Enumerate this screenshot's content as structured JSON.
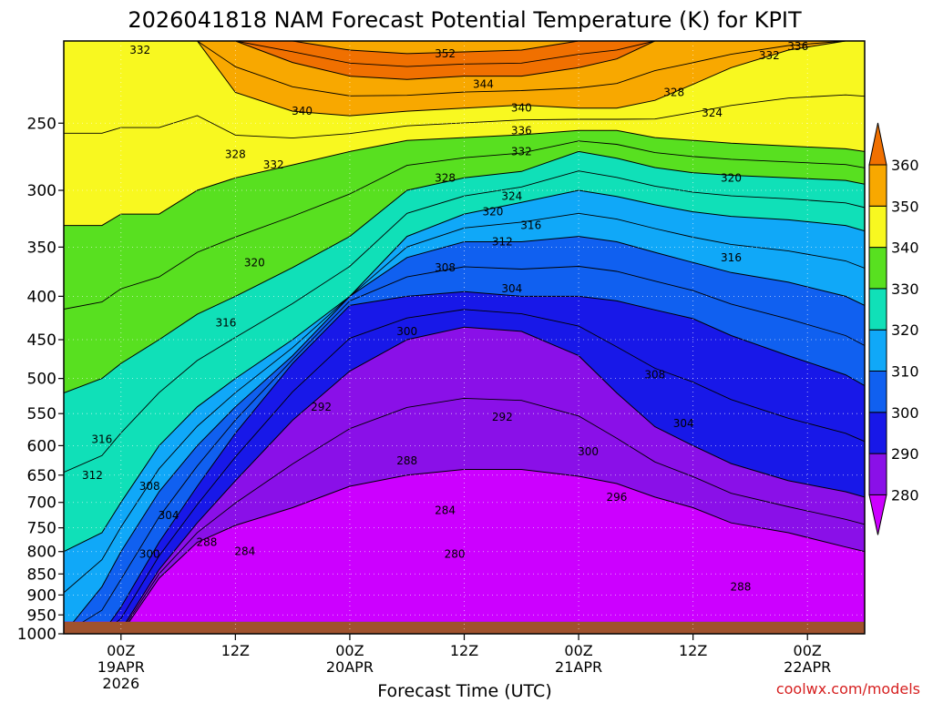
{
  "chart_data": {
    "type": "heatmap",
    "title": "2026041818 NAM Forecast Potential Temperature (K) for KPIT",
    "xlabel": "Forecast Time (UTC)",
    "ylabel": "",
    "watermark": "coolwx.com/models",
    "y_scale": "log",
    "y_inverted": true,
    "ylim": [
      1000,
      200
    ],
    "y_ticks": [
      1000,
      950,
      900,
      850,
      800,
      750,
      700,
      650,
      600,
      550,
      500,
      450,
      400,
      350,
      300,
      250
    ],
    "y_tick_labels": [
      "1000",
      "950",
      "900",
      "850",
      "800",
      "750",
      "700",
      "650",
      "600",
      "550",
      "500",
      "450",
      "400",
      "350",
      "300",
      "250"
    ],
    "xlim": [
      "2026-04-18T18Z",
      "2026-04-22T12Z"
    ],
    "x_ticks": [
      {
        "hour": 6,
        "label": "00Z",
        "sub1": "19APR",
        "sub2": "2026"
      },
      {
        "hour": 18,
        "label": "12Z",
        "sub1": "",
        "sub2": ""
      },
      {
        "hour": 30,
        "label": "00Z",
        "sub1": "20APR",
        "sub2": ""
      },
      {
        "hour": 42,
        "label": "12Z",
        "sub1": "",
        "sub2": ""
      },
      {
        "hour": 54,
        "label": "00Z",
        "sub1": "21APR",
        "sub2": ""
      },
      {
        "hour": 66,
        "label": "12Z",
        "sub1": "",
        "sub2": ""
      },
      {
        "hour": 78,
        "label": "00Z",
        "sub1": "22APR",
        "sub2": ""
      }
    ],
    "x_range_hours": [
      0,
      84
    ],
    "grid": true,
    "legend_position": "right",
    "colorbar": {
      "levels": [
        280,
        290,
        300,
        310,
        320,
        330,
        340,
        350,
        360
      ],
      "labels": [
        "280",
        "290",
        "300",
        "310",
        "320",
        "330",
        "340",
        "350",
        "360"
      ],
      "colors": [
        "#cc00ff",
        "#8a10e8",
        "#1818e8",
        "#1060f0",
        "#10a8f8",
        "#10e0b8",
        "#58e020",
        "#f8f820",
        "#f8a800",
        "#f07000"
      ]
    },
    "ground_color": "#a0522d",
    "contour_interval": 4,
    "series": [
      {
        "name": "",
        "x": [
          0,
          4,
          6,
          10,
          14,
          18,
          24,
          30,
          36,
          42,
          48,
          54,
          58,
          62,
          66,
          70,
          76,
          82,
          84
        ],
        "values": [
          1000,
          1000,
          1000,
          860,
          780,
          745,
          710,
          670,
          650,
          640,
          640,
          652,
          665,
          690,
          710,
          740,
          760,
          790,
          800
        ]
      },
      {
        "name": "",
        "x": [
          0,
          4,
          6,
          10,
          14,
          18,
          24,
          30,
          36,
          42,
          48,
          54,
          58,
          62,
          66,
          70,
          76,
          82,
          84
        ],
        "values": [
          1000,
          1000,
          990,
          840,
          740,
          660,
          560,
          490,
          450,
          435,
          440,
          470,
          520,
          570,
          600,
          630,
          660,
          680,
          690
        ]
      },
      {
        "name": "",
        "x": [
          0,
          4,
          6,
          10,
          14,
          18,
          24,
          30,
          36,
          42,
          48,
          54,
          58,
          62,
          66,
          70,
          76,
          82,
          84
        ],
        "values": [
          1000,
          1000,
          930,
          780,
          670,
          580,
          480,
          410,
          400,
          395,
          400,
          400,
          405,
          415,
          425,
          445,
          470,
          495,
          510
        ]
      },
      {
        "name": "",
        "x": [
          0,
          4,
          6,
          10,
          14,
          18,
          24,
          30,
          36,
          42,
          48,
          54,
          58,
          62,
          66,
          70,
          76,
          82,
          84
        ],
        "values": [
          1000,
          880,
          800,
          680,
          600,
          540,
          470,
          400,
          360,
          345,
          345,
          340,
          345,
          355,
          365,
          375,
          385,
          400,
          410
        ]
      },
      {
        "name": "",
        "x": [
          0,
          4,
          6,
          10,
          14,
          18,
          24,
          30,
          36,
          42,
          48,
          54,
          58,
          62,
          66,
          70,
          76,
          82,
          84
        ],
        "values": [
          800,
          760,
          700,
          600,
          540,
          500,
          450,
          400,
          340,
          320,
          310,
          300,
          305,
          312,
          318,
          322,
          325,
          330,
          335
        ]
      },
      {
        "name": "",
        "x": [
          0,
          4,
          6,
          10,
          14,
          18,
          24,
          30,
          36,
          42,
          48,
          54,
          58,
          62,
          66,
          70,
          76,
          82,
          84
        ],
        "values": [
          520,
          500,
          480,
          450,
          420,
          400,
          370,
          340,
          300,
          290,
          285,
          270,
          275,
          282,
          286,
          288,
          290,
          292,
          295
        ]
      },
      {
        "name": "",
        "x": [
          0,
          4,
          6,
          10,
          14,
          18,
          24,
          30,
          36,
          42,
          48,
          54,
          58,
          62,
          66,
          70,
          76,
          82,
          84
        ],
        "values": [
          330,
          330,
          320,
          320,
          300,
          290,
          280,
          270,
          262,
          260,
          258,
          255,
          255,
          260,
          262,
          264,
          266,
          268,
          270
        ]
      },
      {
        "name": "",
        "x": [
          0,
          4,
          6,
          10,
          14,
          18,
          24,
          30,
          36,
          42,
          48,
          54,
          58,
          62,
          66,
          70,
          76,
          82,
          84
        ],
        "values": [
          200,
          200,
          200,
          200,
          200,
          230,
          242,
          245,
          242,
          240,
          238,
          240,
          240,
          235,
          225,
          215,
          205,
          200,
          200
        ]
      },
      {
        "name": "",
        "x": [
          0,
          4,
          6,
          10,
          14,
          18,
          24,
          30,
          36,
          42,
          48,
          54,
          58,
          62,
          66,
          70,
          76,
          82,
          84
        ],
        "values": [
          200,
          200,
          200,
          200,
          200,
          200,
          212,
          220,
          222,
          220,
          220,
          215,
          210,
          200,
          200,
          200,
          200,
          200,
          200
        ]
      },
      {
        "name": "",
        "x": [
          0,
          4,
          6,
          10,
          14,
          18,
          24,
          30,
          36,
          42,
          48,
          54,
          58,
          62,
          66,
          70,
          76,
          82,
          84
        ],
        "values": [
          200,
          200,
          200,
          200,
          200,
          200,
          200,
          205,
          207,
          206,
          205,
          200,
          200,
          200,
          200,
          200,
          200,
          200,
          200
        ]
      }
    ],
    "contour_labels": [
      {
        "text": "332",
        "x": 8,
        "p": 205
      },
      {
        "text": "352",
        "x": 40,
        "p": 207
      },
      {
        "text": "336",
        "x": 77,
        "p": 203
      },
      {
        "text": "332",
        "x": 74,
        "p": 208
      },
      {
        "text": "344",
        "x": 44,
        "p": 225
      },
      {
        "text": "340",
        "x": 25,
        "p": 242
      },
      {
        "text": "340",
        "x": 48,
        "p": 240
      },
      {
        "text": "336",
        "x": 48,
        "p": 255
      },
      {
        "text": "332",
        "x": 48,
        "p": 270
      },
      {
        "text": "328",
        "x": 64,
        "p": 230
      },
      {
        "text": "324",
        "x": 68,
        "p": 243
      },
      {
        "text": "328",
        "x": 18,
        "p": 272
      },
      {
        "text": "332",
        "x": 22,
        "p": 280
      },
      {
        "text": "328",
        "x": 40,
        "p": 290
      },
      {
        "text": "324",
        "x": 47,
        "p": 305
      },
      {
        "text": "320",
        "x": 45,
        "p": 318
      },
      {
        "text": "316",
        "x": 49,
        "p": 330
      },
      {
        "text": "312",
        "x": 46,
        "p": 345
      },
      {
        "text": "320",
        "x": 70,
        "p": 290
      },
      {
        "text": "308",
        "x": 40,
        "p": 370
      },
      {
        "text": "304",
        "x": 47,
        "p": 392
      },
      {
        "text": "316",
        "x": 70,
        "p": 360
      },
      {
        "text": "320",
        "x": 20,
        "p": 365
      },
      {
        "text": "316",
        "x": 17,
        "p": 430
      },
      {
        "text": "300",
        "x": 36,
        "p": 440
      },
      {
        "text": "308",
        "x": 62,
        "p": 495
      },
      {
        "text": "292",
        "x": 27,
        "p": 540
      },
      {
        "text": "292",
        "x": 46,
        "p": 555
      },
      {
        "text": "304",
        "x": 65,
        "p": 565
      },
      {
        "text": "316",
        "x": 4,
        "p": 590
      },
      {
        "text": "300",
        "x": 55,
        "p": 610
      },
      {
        "text": "288",
        "x": 36,
        "p": 625
      },
      {
        "text": "312",
        "x": 3,
        "p": 650
      },
      {
        "text": "308",
        "x": 9,
        "p": 670
      },
      {
        "text": "296",
        "x": 58,
        "p": 690
      },
      {
        "text": "284",
        "x": 40,
        "p": 715
      },
      {
        "text": "304",
        "x": 11,
        "p": 725
      },
      {
        "text": "288",
        "x": 15,
        "p": 780
      },
      {
        "text": "284",
        "x": 19,
        "p": 800
      },
      {
        "text": "300",
        "x": 9,
        "p": 805
      },
      {
        "text": "280",
        "x": 41,
        "p": 805
      },
      {
        "text": "288",
        "x": 71,
        "p": 880
      }
    ]
  }
}
